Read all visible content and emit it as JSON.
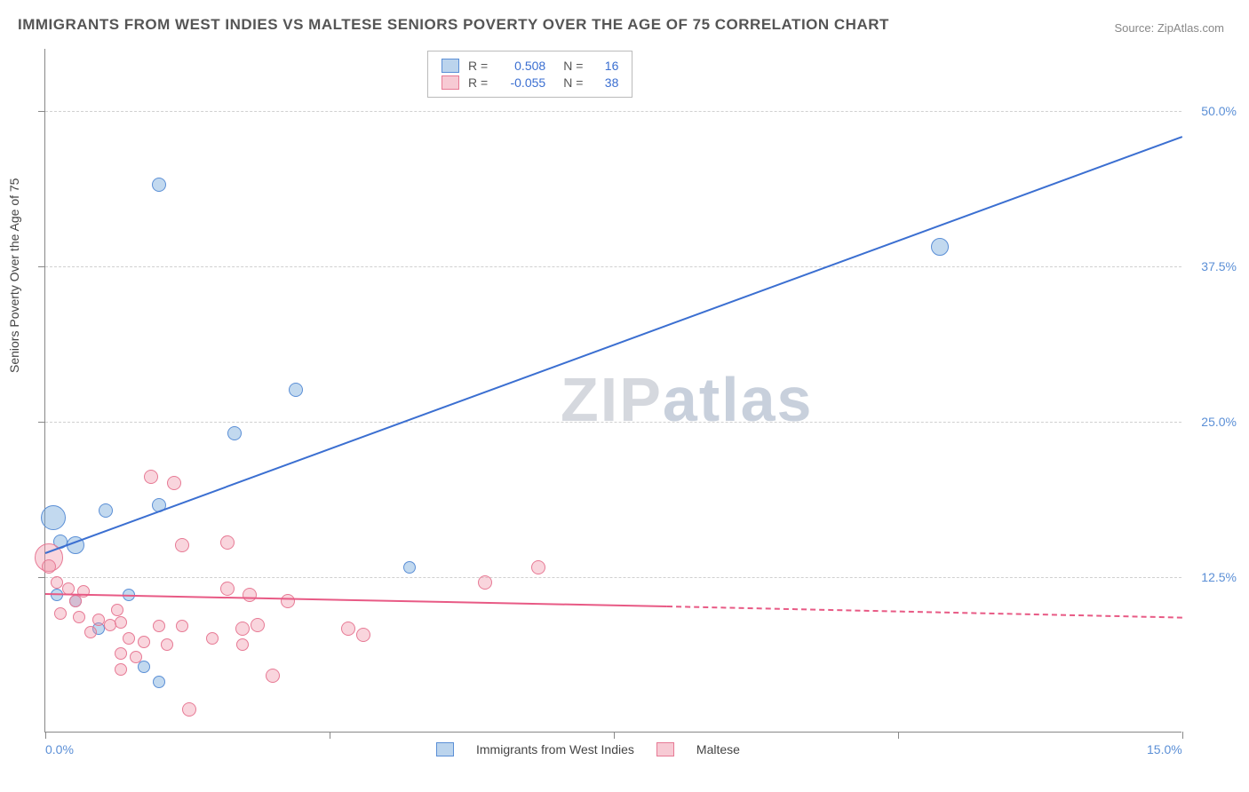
{
  "title": "IMMIGRANTS FROM WEST INDIES VS MALTESE SENIORS POVERTY OVER THE AGE OF 75 CORRELATION CHART",
  "source": "Source: ZipAtlas.com",
  "watermark_a": "ZIP",
  "watermark_b": "atlas",
  "ylabel": "Seniors Poverty Over the Age of 75",
  "chart": {
    "type": "scatter",
    "xlim": [
      0,
      15
    ],
    "ylim": [
      0,
      55
    ],
    "x_ticks": [
      0,
      3.75,
      7.5,
      11.25,
      15
    ],
    "x_tick_labels": [
      "0.0%",
      "",
      "",
      "",
      "15.0%"
    ],
    "y_levels": [
      12.5,
      25.0,
      37.5,
      50.0
    ],
    "y_tick_labels": [
      "12.5%",
      "25.0%",
      "37.5%",
      "50.0%"
    ],
    "grid_color": "#d0d0d0",
    "background_color": "#ffffff",
    "series": [
      {
        "name": "Immigrants from West Indies",
        "color_fill": "rgba(120,170,220,0.45)",
        "color_stroke": "#5b8fd6",
        "R": "0.508",
        "N": "16",
        "trend": {
          "x1": 0,
          "y1": 14.5,
          "x2": 15,
          "y2": 48,
          "color": "#3b6fd1"
        },
        "points": [
          {
            "x": 1.5,
            "y": 44,
            "r": 8
          },
          {
            "x": 11.8,
            "y": 39,
            "r": 10
          },
          {
            "x": 3.3,
            "y": 27.5,
            "r": 8
          },
          {
            "x": 2.5,
            "y": 24,
            "r": 8
          },
          {
            "x": 0.1,
            "y": 17.2,
            "r": 14
          },
          {
            "x": 0.8,
            "y": 17.8,
            "r": 8
          },
          {
            "x": 1.5,
            "y": 18.2,
            "r": 8
          },
          {
            "x": 0.4,
            "y": 15,
            "r": 10
          },
          {
            "x": 0.2,
            "y": 15.3,
            "r": 8
          },
          {
            "x": 4.8,
            "y": 13.2,
            "r": 7
          },
          {
            "x": 0.15,
            "y": 11,
            "r": 7
          },
          {
            "x": 0.4,
            "y": 10.5,
            "r": 7
          },
          {
            "x": 1.1,
            "y": 11,
            "r": 7
          },
          {
            "x": 0.7,
            "y": 8.3,
            "r": 7
          },
          {
            "x": 1.3,
            "y": 5.2,
            "r": 7
          },
          {
            "x": 1.5,
            "y": 4,
            "r": 7
          }
        ]
      },
      {
        "name": "Maltese",
        "color_fill": "rgba(240,150,170,0.4)",
        "color_stroke": "#e77a95",
        "R": "-0.055",
        "N": "38",
        "trend": {
          "x1": 0,
          "y1": 11.2,
          "x2": 8.2,
          "y2": 10.2,
          "color": "#e85a85"
        },
        "trend_dash": {
          "x1": 8.2,
          "y1": 10.2,
          "x2": 15,
          "y2": 9.3,
          "color": "#e85a85"
        },
        "points": [
          {
            "x": 1.4,
            "y": 20.5,
            "r": 8
          },
          {
            "x": 1.7,
            "y": 20,
            "r": 8
          },
          {
            "x": 0.05,
            "y": 14,
            "r": 16
          },
          {
            "x": 0.05,
            "y": 13.3,
            "r": 8
          },
          {
            "x": 1.8,
            "y": 15,
            "r": 8
          },
          {
            "x": 2.4,
            "y": 15.2,
            "r": 8
          },
          {
            "x": 6.5,
            "y": 13.2,
            "r": 8
          },
          {
            "x": 5.8,
            "y": 12,
            "r": 8
          },
          {
            "x": 0.15,
            "y": 12,
            "r": 7
          },
          {
            "x": 0.3,
            "y": 11.5,
            "r": 7
          },
          {
            "x": 0.5,
            "y": 11.3,
            "r": 7
          },
          {
            "x": 0.4,
            "y": 10.5,
            "r": 7
          },
          {
            "x": 2.4,
            "y": 11.5,
            "r": 8
          },
          {
            "x": 2.7,
            "y": 11,
            "r": 8
          },
          {
            "x": 3.2,
            "y": 10.5,
            "r": 8
          },
          {
            "x": 0.2,
            "y": 9.5,
            "r": 7
          },
          {
            "x": 0.45,
            "y": 9.2,
            "r": 7
          },
          {
            "x": 0.7,
            "y": 9,
            "r": 7
          },
          {
            "x": 0.85,
            "y": 8.6,
            "r": 7
          },
          {
            "x": 1.0,
            "y": 8.8,
            "r": 7
          },
          {
            "x": 0.6,
            "y": 8,
            "r": 7
          },
          {
            "x": 1.1,
            "y": 7.5,
            "r": 7
          },
          {
            "x": 1.3,
            "y": 7.2,
            "r": 7
          },
          {
            "x": 1.5,
            "y": 8.5,
            "r": 7
          },
          {
            "x": 1.8,
            "y": 8.5,
            "r": 7
          },
          {
            "x": 2.2,
            "y": 7.5,
            "r": 7
          },
          {
            "x": 2.6,
            "y": 8.3,
            "r": 8
          },
          {
            "x": 2.8,
            "y": 8.6,
            "r": 8
          },
          {
            "x": 2.6,
            "y": 7,
            "r": 7
          },
          {
            "x": 4.0,
            "y": 8.3,
            "r": 8
          },
          {
            "x": 4.2,
            "y": 7.8,
            "r": 8
          },
          {
            "x": 1.0,
            "y": 6.3,
            "r": 7
          },
          {
            "x": 1.2,
            "y": 6.0,
            "r": 7
          },
          {
            "x": 1.0,
            "y": 5.0,
            "r": 7
          },
          {
            "x": 3.0,
            "y": 4.5,
            "r": 8
          },
          {
            "x": 1.9,
            "y": 1.8,
            "r": 8
          },
          {
            "x": 1.6,
            "y": 7.0,
            "r": 7
          },
          {
            "x": 0.95,
            "y": 9.8,
            "r": 7
          }
        ]
      }
    ]
  },
  "legend_bottom": [
    {
      "label": "Immigrants from West Indies",
      "swatch": "blue"
    },
    {
      "label": "Maltese",
      "swatch": "pink"
    }
  ]
}
